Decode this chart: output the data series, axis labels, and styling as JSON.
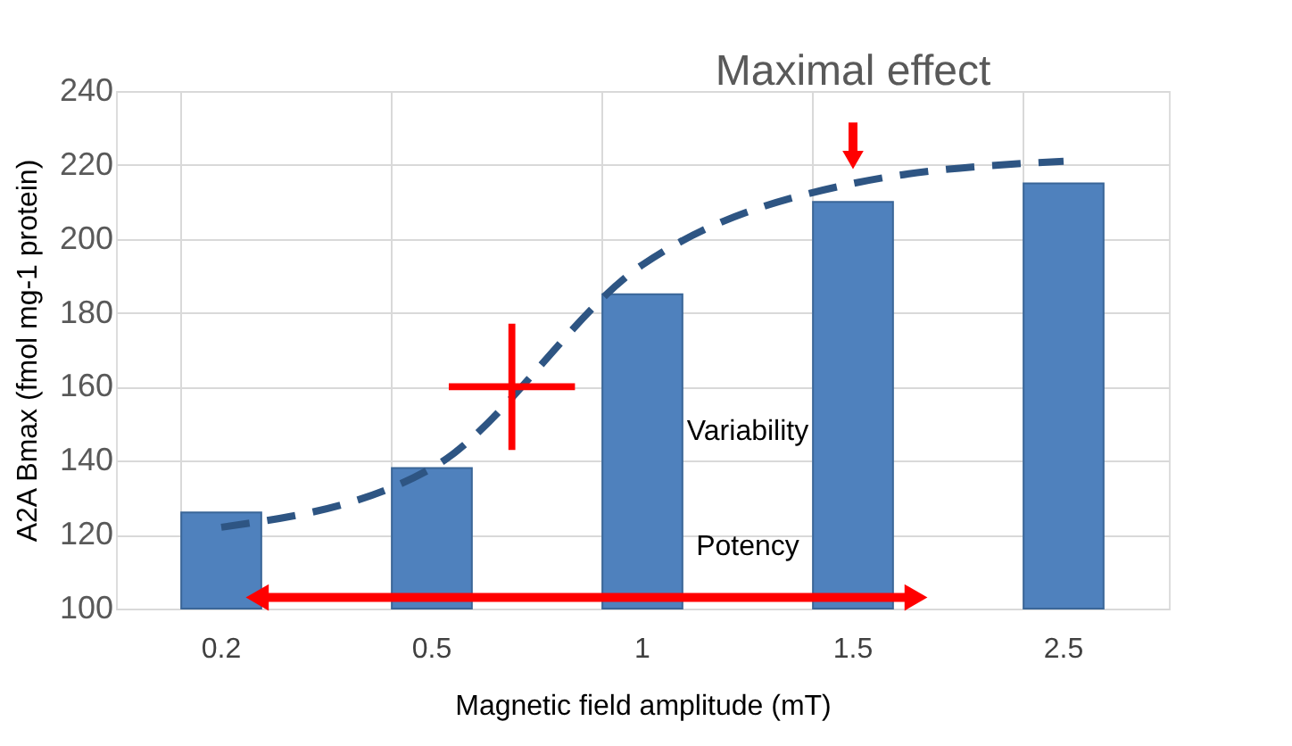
{
  "chart_data": {
    "type": "bar",
    "xlabel": "Magnetic field amplitude (mT)",
    "ylabel": "A2A Bmax (fmol mg-1 protein)",
    "categories": [
      "0.2",
      "0.5",
      "1",
      "1.5",
      "2.5"
    ],
    "series": [
      {
        "color": "#4f81bd",
        "values": [
          126,
          138,
          185,
          210,
          215
        ]
      },
      {
        "type": "line",
        "color": "#2e5583",
        "line_style": "dashed",
        "marker": "none",
        "values": [
          122,
          138,
          193,
          215,
          221
        ]
      }
    ],
    "ylim": [
      100,
      240
    ],
    "yticks": [
      100,
      120,
      140,
      160,
      180,
      200,
      220,
      240
    ],
    "grid": true,
    "annotations": [
      {
        "text": "Maximal effect",
        "x": "1.5",
        "y": 217
      },
      "Variability",
      "Potency"
    ]
  }
}
